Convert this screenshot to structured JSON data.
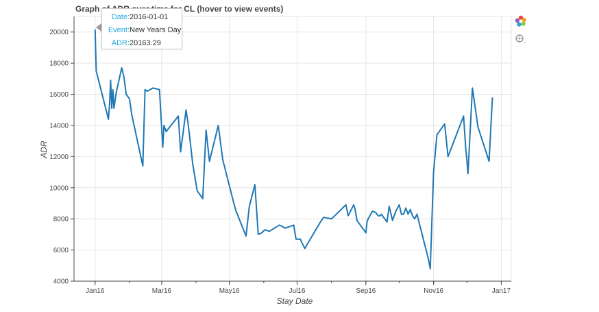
{
  "chart_data": {
    "type": "line",
    "title": "Graph of ADR over time for CL (hover to view events)",
    "xlabel": "Stay Date",
    "ylabel": "ADR",
    "x_range": [
      "2015-12-13",
      "2017-01-10"
    ],
    "ylim": [
      4000,
      21000
    ],
    "x_ticks": [
      {
        "date": "2016-01-01",
        "label": "Jan16"
      },
      {
        "date": "2016-03-01",
        "label": "Mar16"
      },
      {
        "date": "2016-05-01",
        "label": "May16"
      },
      {
        "date": "2016-07-01",
        "label": "Jul16"
      },
      {
        "date": "2016-09-01",
        "label": "Sep16"
      },
      {
        "date": "2016-11-01",
        "label": "Nov16"
      },
      {
        "date": "2017-01-01",
        "label": "Jan17"
      }
    ],
    "y_ticks": [
      4000,
      6000,
      8000,
      10000,
      12000,
      14000,
      16000,
      18000,
      20000
    ],
    "grid": true,
    "color": "#1f77b4",
    "series": [
      {
        "name": "",
        "x": [
          "2016-01-01",
          "2016-01-02",
          "2016-01-13",
          "2016-01-14",
          "2016-01-15",
          "2016-01-16",
          "2016-01-17",
          "2016-01-18",
          "2016-01-20",
          "2016-01-25",
          "2016-01-27",
          "2016-01-29",
          "2016-02-01",
          "2016-02-03",
          "2016-02-13",
          "2016-02-15",
          "2016-02-17",
          "2016-02-22",
          "2016-02-28",
          "2016-03-02",
          "2016-03-03",
          "2016-03-05",
          "2016-03-16",
          "2016-03-18",
          "2016-03-23",
          "2016-03-25",
          "2016-03-29",
          "2016-04-02",
          "2016-04-06",
          "2016-04-07",
          "2016-04-10",
          "2016-04-13",
          "2016-04-21",
          "2016-04-25",
          "2016-05-05",
          "2016-05-07",
          "2016-05-16",
          "2016-05-19",
          "2016-05-24",
          "2016-05-27",
          "2016-05-30",
          "2016-06-02",
          "2016-06-06",
          "2016-06-15",
          "2016-06-18",
          "2016-06-20",
          "2016-06-28",
          "2016-06-30",
          "2016-07-02",
          "2016-07-04",
          "2016-07-05",
          "2016-07-08",
          "2016-07-22",
          "2016-07-25",
          "2016-08-01",
          "2016-08-14",
          "2016-08-16",
          "2016-08-21",
          "2016-08-22",
          "2016-08-24",
          "2016-09-01",
          "2016-09-02",
          "2016-09-03",
          "2016-09-07",
          "2016-09-10",
          "2016-09-12",
          "2016-09-14",
          "2016-09-15",
          "2016-09-20",
          "2016-09-22",
          "2016-09-25",
          "2016-09-27",
          "2016-09-28",
          "2016-10-01",
          "2016-10-03",
          "2016-10-05",
          "2016-10-07",
          "2016-10-09",
          "2016-10-11",
          "2016-10-13",
          "2016-10-15",
          "2016-10-17",
          "2016-10-27",
          "2016-10-29",
          "2016-11-01",
          "2016-11-04",
          "2016-11-11",
          "2016-11-14",
          "2016-11-28",
          "2016-11-30",
          "2016-12-01",
          "2016-12-02",
          "2016-12-06",
          "2016-12-11",
          "2016-12-21",
          "2016-12-24"
        ],
        "y": [
          20163.29,
          17500,
          14400,
          15300,
          16900,
          15100,
          16300,
          15100,
          16100,
          17700,
          17100,
          16000,
          15700,
          14700,
          11400,
          16300,
          16200,
          16400,
          16300,
          12600,
          14000,
          13600,
          14600,
          12300,
          15000,
          14000,
          11500,
          9800,
          9400,
          9300,
          13700,
          11700,
          14000,
          11800,
          9000,
          8500,
          6900,
          8800,
          10200,
          7000,
          7100,
          7300,
          7200,
          7600,
          7500,
          7400,
          7600,
          6700,
          6700,
          6700,
          6500,
          6100,
          7800,
          8100,
          8000,
          8900,
          8200,
          8900,
          8700,
          7900,
          7100,
          7800,
          8000,
          8500,
          8400,
          8200,
          8200,
          8300,
          7800,
          8800,
          7900,
          8300,
          8500,
          8900,
          8300,
          8300,
          8700,
          8300,
          8600,
          8200,
          8000,
          8300,
          5500,
          4800,
          11000,
          13400,
          14100,
          12000,
          14600,
          12500,
          11800,
          10900,
          16400,
          13900,
          11700,
          15800
        ]
      }
    ],
    "hover_tooltip": {
      "date_key": "Date:",
      "date_val": "2016-01-01",
      "event_key": "Event:",
      "event_val": "New Years Day",
      "adr_key": "ADR:",
      "adr_val": "20163.29"
    }
  },
  "toolbar": {
    "logo_icon": "bokeh-logo-icon",
    "hover_icon": "hover-tool-icon"
  }
}
